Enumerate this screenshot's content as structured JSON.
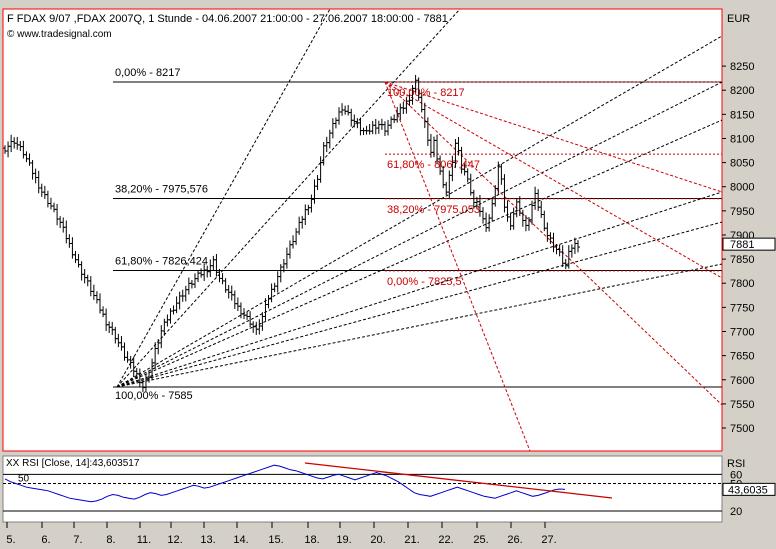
{
  "header": {
    "title": "F FDAX 9/07 ,FDAX 2007Q, 1 Stunde - 04.06.2007 21:00:00 - 27.06.2007 18:00:00 - 7881",
    "source": "© www.tradesignal.com",
    "currency": "EUR"
  },
  "rsi_header": {
    "label": "XX RSI [Close, 14]:43,603517",
    "axis_label": "RSI"
  },
  "colors": {
    "frame": "#ff0000",
    "price": "#000000",
    "rsi": "#0000cc",
    "fib_up": "#000000",
    "fib_down": "#cc0000",
    "trendline": "#cc0000",
    "background": "#ffffff",
    "chrome": "#d4d0c8"
  },
  "chart_data": [
    {
      "type": "bar",
      "name": "FDAX 9/07 hourly OHLC",
      "title": "F FDAX 9/07 ,FDAX 2007Q, 1 Stunde",
      "ylabel": "EUR",
      "ylim": [
        7454,
        8301
      ],
      "y_ticks": [
        7500,
        7550,
        7600,
        7650,
        7700,
        7750,
        7800,
        7850,
        7900,
        7950,
        8000,
        8050,
        8100,
        8150,
        8200,
        8250
      ],
      "last_price": 7881,
      "x_tick_labels": [
        "5.",
        "6.",
        "7.",
        "8.",
        "11.",
        "12.",
        "13.",
        "14.",
        "15.",
        "18.",
        "19.",
        "20.",
        "21.",
        "22.",
        "25.",
        "26.",
        "27."
      ],
      "grid": false,
      "close_path": [
        [
          0,
          8080
        ],
        [
          3,
          8095
        ],
        [
          6,
          8070
        ],
        [
          9,
          8030
        ],
        [
          12,
          7990
        ],
        [
          15,
          7960
        ],
        [
          18,
          7925
        ],
        [
          21,
          7880
        ],
        [
          24,
          7835
        ],
        [
          27,
          7800
        ],
        [
          30,
          7760
        ],
        [
          33,
          7720
        ],
        [
          36,
          7690
        ],
        [
          39,
          7650
        ],
        [
          42,
          7620
        ],
        [
          44,
          7600
        ],
        [
          45,
          7585
        ],
        [
          47,
          7610
        ],
        [
          49,
          7660
        ],
        [
          51,
          7700
        ],
        [
          54,
          7740
        ],
        [
          57,
          7770
        ],
        [
          60,
          7795
        ],
        [
          63,
          7815
        ],
        [
          66,
          7830
        ],
        [
          68,
          7845
        ],
        [
          70,
          7810
        ],
        [
          72,
          7790
        ],
        [
          74,
          7770
        ],
        [
          76,
          7750
        ],
        [
          78,
          7735
        ],
        [
          80,
          7720
        ],
        [
          82,
          7700
        ],
        [
          84,
          7730
        ],
        [
          86,
          7770
        ],
        [
          88,
          7800
        ],
        [
          90,
          7830
        ],
        [
          92,
          7860
        ],
        [
          94,
          7890
        ],
        [
          96,
          7920
        ],
        [
          98,
          7950
        ],
        [
          100,
          7975
        ],
        [
          102,
          8020
        ],
        [
          104,
          8080
        ],
        [
          106,
          8110
        ],
        [
          108,
          8140
        ],
        [
          110,
          8165
        ],
        [
          112,
          8150
        ],
        [
          114,
          8135
        ],
        [
          116,
          8120
        ],
        [
          118,
          8110
        ],
        [
          120,
          8125
        ],
        [
          122,
          8130
        ],
        [
          124,
          8120
        ],
        [
          126,
          8135
        ],
        [
          128,
          8150
        ],
        [
          130,
          8165
        ],
        [
          132,
          8185
        ],
        [
          133,
          8205
        ],
        [
          134,
          8217
        ],
        [
          135,
          8190
        ],
        [
          136,
          8160
        ],
        [
          137,
          8130
        ],
        [
          138,
          8100
        ],
        [
          139,
          8070
        ],
        [
          140,
          8090
        ],
        [
          141,
          8060
        ],
        [
          142,
          8030
        ],
        [
          143,
          8010
        ],
        [
          144,
          7990
        ],
        [
          145,
          8020
        ],
        [
          146,
          8055
        ],
        [
          147,
          8090
        ],
        [
          148,
          8070
        ],
        [
          149,
          8040
        ],
        [
          150,
          8030
        ],
        [
          151,
          8010
        ],
        [
          152,
          7990
        ],
        [
          153,
          7965
        ],
        [
          154,
          7975
        ],
        [
          155,
          7950
        ],
        [
          156,
          7930
        ],
        [
          157,
          7920
        ],
        [
          158,
          7935
        ],
        [
          159,
          7960
        ],
        [
          160,
          8000
        ],
        [
          161,
          8040
        ],
        [
          162,
          8010
        ],
        [
          163,
          7960
        ],
        [
          164,
          7935
        ],
        [
          165,
          7925
        ],
        [
          166,
          7945
        ],
        [
          167,
          7965
        ],
        [
          168,
          7950
        ],
        [
          169,
          7930
        ],
        [
          170,
          7915
        ],
        [
          171,
          7935
        ],
        [
          172,
          7960
        ],
        [
          173,
          7980
        ],
        [
          174,
          7960
        ],
        [
          175,
          7940
        ],
        [
          176,
          7920
        ],
        [
          177,
          7900
        ],
        [
          178,
          7890
        ],
        [
          179,
          7880
        ],
        [
          180,
          7870
        ],
        [
          181,
          7860
        ],
        [
          182,
          7845
        ],
        [
          183,
          7835
        ],
        [
          184,
          7860
        ],
        [
          185,
          7875
        ],
        [
          186,
          7880
        ],
        [
          187,
          7881
        ]
      ],
      "fib_retracement_up": {
        "levels": [
          {
            "label": "0,00% - 8217",
            "value": 8217
          },
          {
            "label": "38,20% - 7975,576",
            "value": 7975.576
          },
          {
            "label": "61,80% - 7826,424",
            "value": 7826.424
          },
          {
            "label": "100,00% - 7585",
            "value": 7585
          }
        ]
      },
      "fib_retracement_down": {
        "levels": [
          {
            "label": "100,00% - 8217",
            "value": 8217
          },
          {
            "label": "61,80% - 8067,447",
            "value": 8067.447
          },
          {
            "label": "38,20% - 7975,053",
            "value": 7975.053
          },
          {
            "label": "0,00% - 7825,5",
            "value": 7825.5
          }
        ]
      }
    },
    {
      "type": "line",
      "name": "RSI",
      "title": "XX RSI [Close, 14]:43,603517",
      "ylim": [
        8,
        80
      ],
      "y_ticks": [
        20,
        50,
        60
      ],
      "reference_lines": [
        20,
        50,
        60
      ],
      "last_value": 43.6035,
      "last_value_label": "43,6035",
      "values": [
        55,
        52,
        50,
        48,
        46,
        45,
        44,
        43,
        42,
        40,
        38,
        36,
        34,
        33,
        32,
        31,
        30,
        31,
        33,
        36,
        38,
        37,
        35,
        34,
        33,
        35,
        38,
        40,
        39,
        37,
        38,
        40,
        42,
        44,
        46,
        48,
        47,
        45,
        46,
        48,
        50,
        52,
        54,
        56,
        58,
        60,
        62,
        64,
        66,
        68,
        70,
        69,
        67,
        65,
        64,
        62,
        60,
        58,
        56,
        55,
        57,
        59,
        60,
        58,
        56,
        54,
        56,
        58,
        60,
        62,
        60,
        58,
        55,
        52,
        48,
        44,
        40,
        38,
        37,
        36,
        38,
        40,
        42,
        44,
        46,
        44,
        42,
        40,
        38,
        36,
        35,
        34,
        36,
        38,
        40,
        42,
        40,
        38,
        36,
        37,
        39,
        41,
        43,
        44,
        43.6
      ]
    }
  ]
}
